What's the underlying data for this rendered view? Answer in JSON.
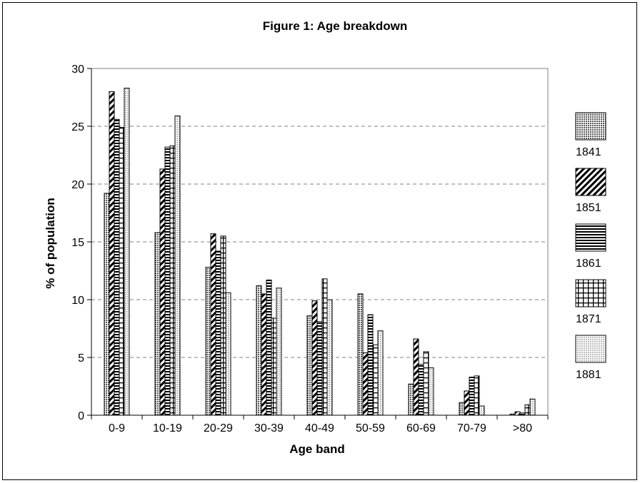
{
  "chart_data": {
    "type": "bar",
    "title": "Figure 1: Age breakdown",
    "xlabel": "Age band",
    "ylabel": "% of population",
    "categories": [
      "0-9",
      "10-19",
      "20-29",
      "30-39",
      "40-49",
      "50-59",
      "60-69",
      "70-79",
      ">80"
    ],
    "ylim": [
      0,
      30
    ],
    "yticks": [
      0,
      5,
      10,
      15,
      20,
      25,
      30
    ],
    "grid": "horizontal dashed",
    "legend_position": "right",
    "series": [
      {
        "name": "1841",
        "pattern": "crosshatch-fine",
        "values": [
          19.2,
          15.8,
          12.8,
          11.2,
          8.6,
          10.5,
          2.7,
          1.1,
          0.1
        ]
      },
      {
        "name": "1851",
        "pattern": "diagonal",
        "values": [
          28.0,
          21.3,
          15.7,
          10.5,
          9.9,
          5.4,
          6.6,
          2.1,
          0.3
        ]
      },
      {
        "name": "1861",
        "pattern": "horizontal",
        "values": [
          25.6,
          23.2,
          14.2,
          11.7,
          8.1,
          8.7,
          4.4,
          3.3,
          0.2
        ]
      },
      {
        "name": "1871",
        "pattern": "grid",
        "values": [
          24.9,
          23.3,
          15.5,
          8.4,
          11.8,
          6.1,
          5.5,
          3.4,
          0.9
        ]
      },
      {
        "name": "1881",
        "pattern": "dots",
        "values": [
          28.3,
          25.9,
          10.6,
          11.0,
          10.0,
          7.3,
          4.1,
          0.8,
          1.4
        ]
      }
    ],
    "colors": {
      "frame": "#000000",
      "plot_border": "#808080",
      "grid": "#808080",
      "bar_stroke": "#000000"
    }
  }
}
